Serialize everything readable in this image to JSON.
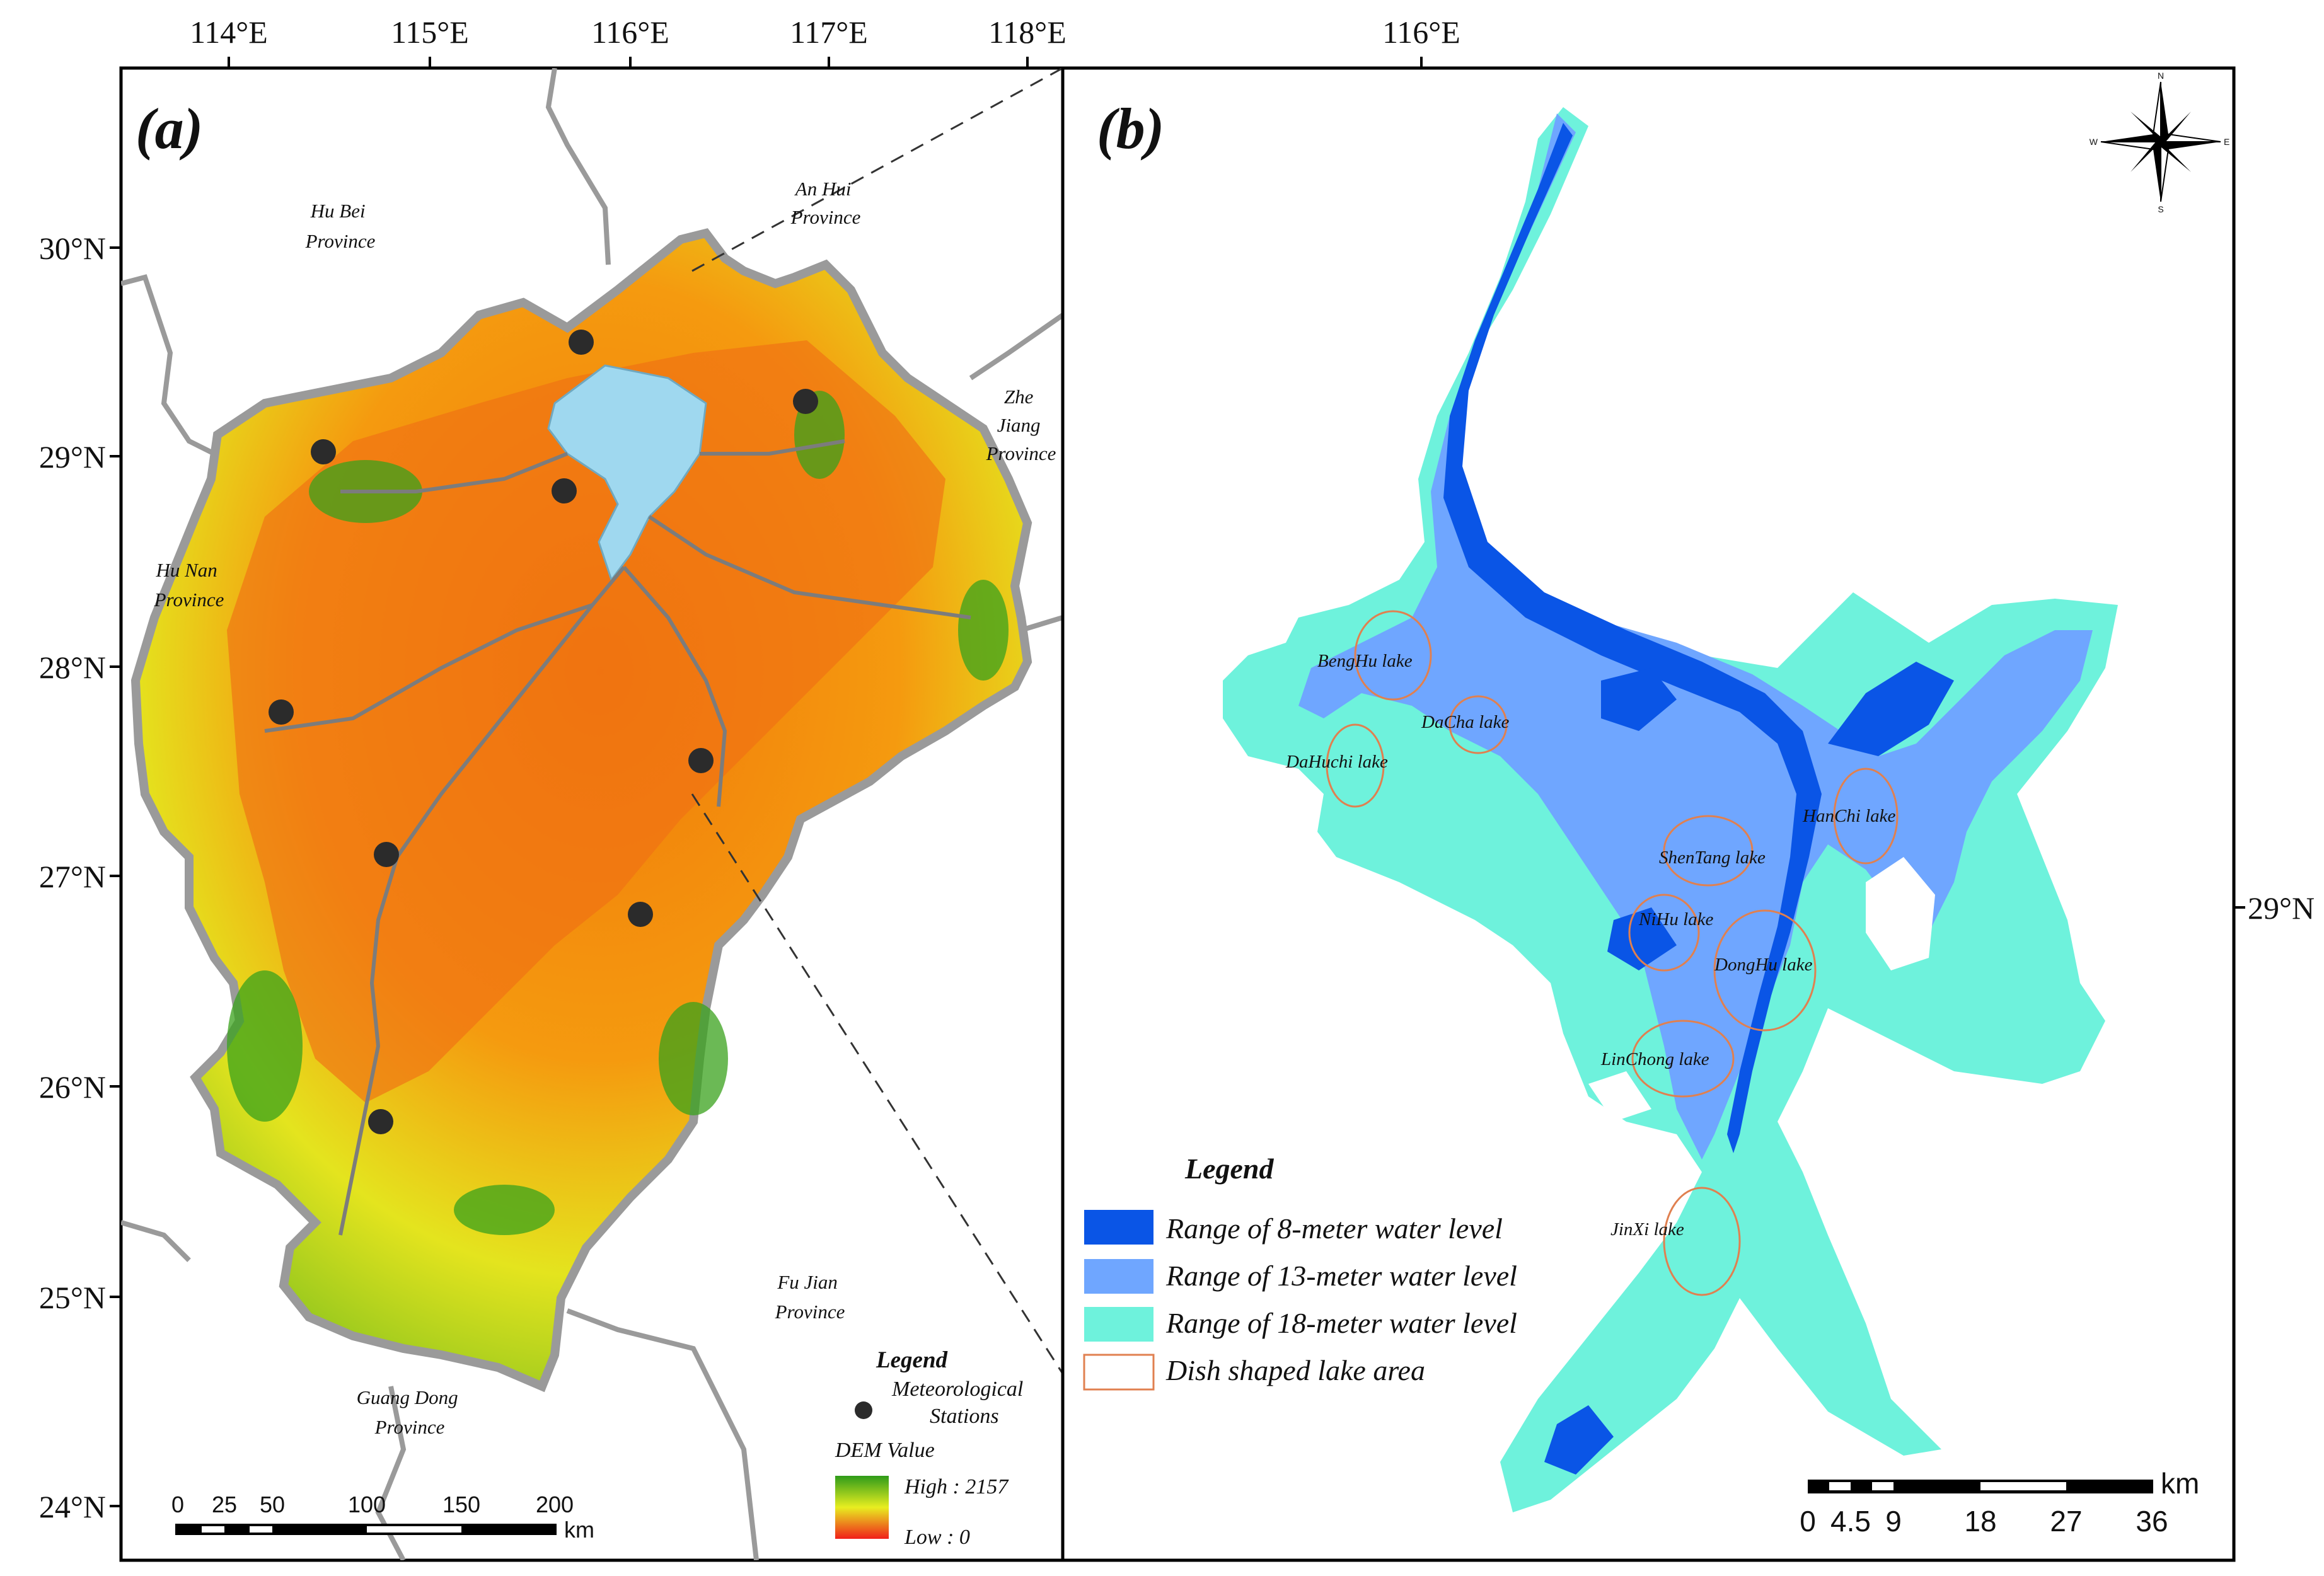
{
  "colors": {
    "dem_high": "#2e9b1a",
    "dem_mid": "#e8ee20",
    "dem_low": "#f07a0a",
    "lake_a": "#9fd8ef",
    "river": "#8a8a8a",
    "level_8m": "#0a55e6",
    "level_13m": "#6fa6ff",
    "level_18m": "#6ef2dc",
    "dish_outline": "#e08050"
  },
  "panel_a": {
    "label": "(a)",
    "lon_labels": [
      "114°E",
      "115°E",
      "116°E",
      "117°E",
      "118°E"
    ],
    "lat_labels": [
      "30°N",
      "29°N",
      "28°N",
      "27°N",
      "26°N",
      "25°N",
      "24°N"
    ],
    "provinces": [
      {
        "line1": "Hu Bei",
        "line2": "Province"
      },
      {
        "line1": "An Hui",
        "line2": "Province"
      },
      {
        "line1": "Zhe",
        "line2": "Jiang",
        "line3": "Province"
      },
      {
        "line1": "Hu Nan",
        "line2": "Province"
      },
      {
        "line1": "Fu Jian",
        "line2": "Province"
      },
      {
        "line1": "Guang Dong",
        "line2": "Province"
      }
    ],
    "legend": {
      "title": "Legend",
      "stations_line1": "Meteorological",
      "stations_line2": "Stations",
      "dem_title": "DEM Value",
      "high": "High : 2157",
      "low": "Low : 0"
    },
    "scale": {
      "ticks": [
        "0",
        "25",
        "50",
        "100",
        "150",
        "200"
      ],
      "unit": "km"
    }
  },
  "panel_b": {
    "label": "(b)",
    "lon_label": "116°E",
    "lat_label": "29°N",
    "compass": {
      "n": "N",
      "s": "S",
      "e": "E",
      "w": "W"
    },
    "lakes": [
      "BengHu lake",
      "DaCha lake",
      "DaHuchi lake",
      "HanChi lake",
      "ShenTang lake",
      "NiHu lake",
      "DongHu lake",
      "LinChong lake",
      "JinXi lake"
    ],
    "legend": {
      "title": "Legend",
      "items": [
        "Range of 8-meter water level",
        "Range of 13-meter water level",
        "Range of 18-meter water level",
        "Dish shaped lake area"
      ]
    },
    "scale": {
      "ticks": [
        "0",
        "4.5",
        "9",
        "18",
        "27",
        "36"
      ],
      "unit": "km"
    }
  }
}
